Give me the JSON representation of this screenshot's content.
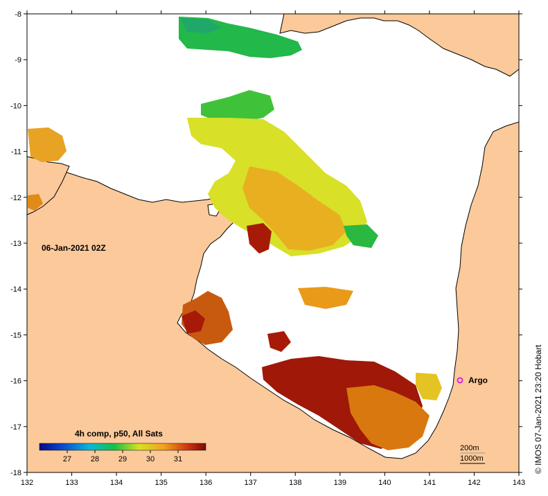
{
  "map": {
    "date_label": "06-Jan-2021 02Z",
    "credit": "© IMOS 07-Jan-2021 23:20 Hobart",
    "legend": {
      "title": "4h comp, p50, All Sats",
      "ticks": [
        "27",
        "28",
        "29",
        "30",
        "31"
      ],
      "range": [
        26,
        32
      ]
    },
    "marker": {
      "label": "Argo",
      "lon": 141.7,
      "lat": -16.0,
      "color": "#e020e0"
    },
    "scale": {
      "top": "200m",
      "bottom": "1000m"
    },
    "x_axis": {
      "ticks": [
        "132",
        "133",
        "134",
        "135",
        "136",
        "137",
        "138",
        "139",
        "140",
        "141",
        "142",
        "143"
      ]
    },
    "y_axis": {
      "ticks": [
        "-8",
        "-9",
        "-10",
        "-11",
        "-12",
        "-13",
        "-14",
        "-15",
        "-16",
        "-17",
        "-18"
      ]
    },
    "colors": {
      "land": "#fbc99a",
      "water": "#ffffff",
      "coast": "#000000"
    }
  }
}
